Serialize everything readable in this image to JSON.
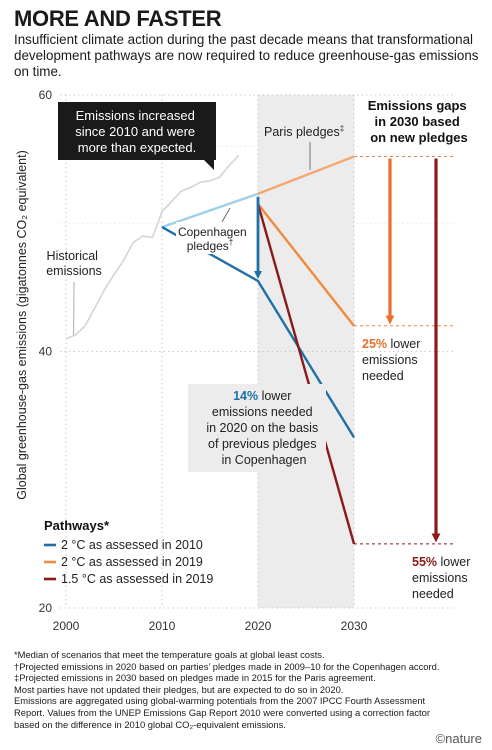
{
  "chart_data": {
    "type": "line",
    "title": "MORE AND FASTER",
    "subtitle": "Insufficient climate action during the past decade means that transformational development pathways are now required to reduce greenhouse-gas emissions on time.",
    "ylabel": "Global greenhouse-gas emissions (gigatonnes CO₂ equivalent)",
    "xlabel": "",
    "xlim": [
      2000,
      2030
    ],
    "ylim": [
      20,
      60
    ],
    "x_ticks": [
      "2000",
      "2010",
      "2020",
      "2030"
    ],
    "y_ticks": [
      "20",
      "40",
      "60"
    ],
    "shaded_region": [
      2020,
      2030
    ],
    "historical": {
      "label_line1": "Historical",
      "label_line2": "emissions",
      "x": [
        2000,
        2001,
        2002,
        2003,
        2004,
        2005,
        2006,
        2007,
        2008,
        2009,
        2010,
        2011,
        2012,
        2013,
        2014,
        2015,
        2016,
        2017,
        2018
      ],
      "y": [
        41.0,
        41.3,
        42.0,
        43.4,
        44.8,
        46.0,
        47.1,
        48.5,
        49.0,
        48.9,
        50.9,
        51.7,
        52.5,
        52.8,
        53.2,
        53.3,
        53.6,
        54.5,
        55.3
      ]
    },
    "series": [
      {
        "name": "2 °C as assessed in 2010",
        "color": "#1f6fa8",
        "x": [
          2010,
          2020,
          2030
        ],
        "y": [
          49.7,
          45.5,
          33.3
        ]
      },
      {
        "name": "2 °C as assessed in 2019",
        "color": "#f08a3c",
        "x": [
          2020,
          2030
        ],
        "y": [
          51.5,
          42.0
        ]
      },
      {
        "name": "1.5 °C as assessed in 2019",
        "color": "#8b1a1a",
        "x": [
          2020,
          2030
        ],
        "y": [
          51.5,
          25.0
        ]
      }
    ],
    "copenhagen_pledges": {
      "color": "#9fd0ea",
      "x": [
        2010,
        2020
      ],
      "y": [
        49.7,
        52.3
      ]
    },
    "paris_pledges": {
      "color": "#f4a770",
      "x": [
        2020,
        2030
      ],
      "y": [
        52.3,
        55.2
      ]
    },
    "legend_title": "Pathways*",
    "legend_position": "bottom-left",
    "annotations": {
      "emissions_box_line1": "Emissions increased",
      "emissions_box_line2": "since 2010 and were",
      "emissions_box_line3": "more than expected.",
      "copenhagen_line1": "Copenhagen",
      "copenhagen_line2": "pledges",
      "paris": "Paris pledges",
      "dagger": "†",
      "dagger2": "‡",
      "gaps_title_line1": "Emissions gaps",
      "gaps_title_line2": "in 2030 based",
      "gaps_title_line3": "on new pledges",
      "pct_14": "14%",
      "note_14_line1_rest": " lower",
      "note_14_line2": "emissions needed",
      "note_14_line3": "in 2020 on the basis",
      "note_14_line4": "of previous pledges",
      "note_14_line5": "in Copenhagen",
      "pct_25": "25%",
      "note_25_line1_rest": " lower",
      "note_25_line2": "emissions",
      "note_25_line3": "needed",
      "pct_55": "55%",
      "note_55_line1_rest": " lower",
      "note_55_line2": "emissions",
      "note_55_line3": "needed"
    }
  },
  "footnotes": [
    "*Median of scenarios that meet the temperature goals at global least costs.",
    "†Projected emissions in 2020 based on parties’ pledges made in 2009–10 for the Copenhagen accord.",
    "‡Projected emissions in 2030 based on pledges made in 2015 for the Paris agreement.",
    "Most parties have not updated their pledges, but are expected to do so in 2020.",
    "Emissions are aggregated using global-warming potentials from the 2007 IPCC Fourth Assessment",
    "Report. Values from the UNEP Emissions Gap Report 2010 were converted using a correction factor",
    "based on the difference in 2010 global CO₂-equivalent emissions."
  ],
  "logo": "©nature"
}
